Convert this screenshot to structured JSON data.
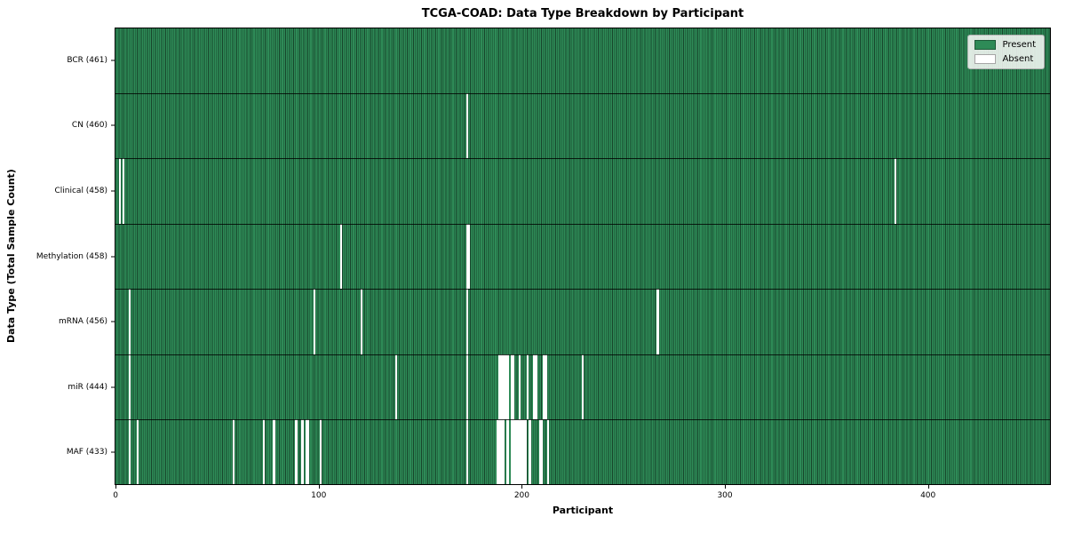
{
  "chart_data": {
    "type": "heatmap",
    "title": "TCGA-COAD: Data Type Breakdown by Participant",
    "xlabel": "Participant",
    "ylabel": "Data Type (Total Sample Count)",
    "legend": [
      "Present",
      "Absent"
    ],
    "legend_position": "upper right",
    "x_ticks": [
      0,
      100,
      200,
      300,
      400
    ],
    "xlim": [
      -0.5,
      460.5
    ],
    "n_participants": 461,
    "grid": false,
    "colors": {
      "present": "#2e8b57",
      "absent": "#ffffff",
      "bar_edge": "rgba(0,0,0,0.5)"
    },
    "rows": [
      {
        "name": "BCR",
        "label": "BCR (461)",
        "total": 461,
        "absent_participants": []
      },
      {
        "name": "CN",
        "label": "CN (460)",
        "total": 460,
        "absent_participants": [
          173
        ]
      },
      {
        "name": "Clinical",
        "label": "Clinical (458)",
        "total": 458,
        "absent_participants": [
          2,
          4,
          384
        ]
      },
      {
        "name": "Methylation",
        "label": "Methylation (458)",
        "total": 458,
        "absent_participants": [
          111,
          173,
          174
        ]
      },
      {
        "name": "mRNA",
        "label": "mRNA (456)",
        "total": 456,
        "absent_participants": [
          7,
          98,
          121,
          173,
          267
        ]
      },
      {
        "name": "miR",
        "label": "miR (444)",
        "total": 444,
        "absent_participants": [
          7,
          138,
          173,
          189,
          190,
          191,
          192,
          193,
          195,
          196,
          199,
          203,
          206,
          207,
          211,
          212,
          230
        ]
      },
      {
        "name": "MAF",
        "label": "MAF (433)",
        "total": 433,
        "absent_participants": [
          7,
          11,
          58,
          73,
          78,
          89,
          92,
          94,
          95,
          101,
          173,
          188,
          189,
          190,
          191,
          193,
          195,
          196,
          197,
          198,
          199,
          200,
          201,
          202,
          204,
          209,
          210,
          213
        ]
      }
    ]
  }
}
